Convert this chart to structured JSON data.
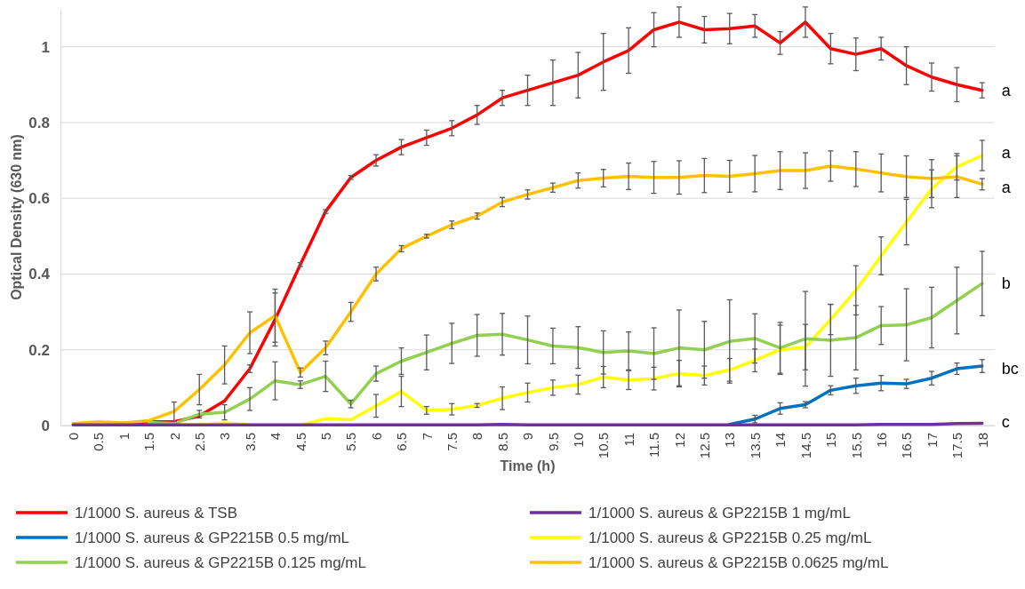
{
  "chart_data": {
    "type": "line",
    "xlabel": "Time (h)",
    "ylabel": "Optical Density (630 nm)",
    "categories": [
      "0",
      "0.5",
      "1",
      "1.5",
      "2",
      "2.5",
      "3",
      "3.5",
      "4",
      "4.5",
      "5",
      "5.5",
      "6",
      "6.5",
      "7",
      "7.5",
      "8",
      "8.5",
      "9",
      "9.5",
      "10",
      "10.5",
      "11",
      "11.5",
      "12",
      "12.5",
      "13",
      "13.5",
      "14",
      "14.5",
      "15",
      "15.5",
      "16",
      "16.5",
      "17",
      "17.5",
      "18"
    ],
    "ylim": [
      0,
      1.1
    ],
    "yticks": [
      0,
      0.2,
      0.4,
      0.6,
      0.8,
      1
    ],
    "grid": "y",
    "legend": "bottom",
    "marker": "none",
    "line_style": "solid",
    "series": [
      {
        "name": "1/1000 S. aureus & TSB",
        "color": "#ff0000",
        "values": [
          null,
          null,
          0.005,
          0.01,
          0.01,
          0.025,
          0.065,
          0.15,
          0.28,
          0.425,
          0.565,
          0.655,
          0.7,
          0.735,
          0.76,
          0.785,
          0.82,
          0.865,
          0.885,
          0.905,
          0.925,
          0.96,
          0.99,
          1.045,
          1.065,
          1.045,
          1.048,
          1.055,
          1.01,
          1.065,
          0.995,
          0.98,
          0.995,
          0.95,
          0.92,
          0.9,
          0.885
        ],
        "errors": [
          null,
          null,
          null,
          null,
          null,
          null,
          null,
          0.01,
          0.07,
          0.005,
          0.005,
          0.005,
          0.015,
          0.02,
          0.02,
          0.02,
          0.025,
          0.02,
          0.04,
          0.06,
          0.06,
          0.075,
          0.06,
          0.045,
          0.04,
          0.035,
          0.04,
          0.03,
          0.03,
          0.04,
          0.04,
          0.043,
          0.03,
          0.05,
          0.037,
          0.045,
          0.02
        ]
      },
      {
        "name": "1/1000 S. aureus & GP2215B 1 mg/mL",
        "color": "#7030a0",
        "values": [
          0.002,
          0.002,
          0.002,
          0.002,
          0.002,
          0.002,
          0.002,
          0.002,
          0.002,
          0.002,
          0.002,
          0.002,
          0.002,
          0.002,
          0.002,
          0.002,
          0.002,
          0.003,
          0.002,
          0.002,
          0.002,
          0.002,
          0.002,
          0.002,
          0.002,
          0.002,
          0.002,
          0.002,
          0.002,
          0.002,
          0.002,
          0.002,
          0.003,
          0.003,
          0.003,
          0.005,
          0.006
        ]
      },
      {
        "name": "1/1000 S. aureus & GP2215B 0.5 mg/mL",
        "color": "#0070c0",
        "values": [
          null,
          null,
          null,
          null,
          null,
          null,
          null,
          null,
          null,
          null,
          null,
          null,
          null,
          null,
          null,
          null,
          null,
          null,
          null,
          null,
          null,
          null,
          null,
          null,
          null,
          null,
          0.003,
          0.017,
          0.045,
          0.055,
          0.093,
          0.105,
          0.112,
          0.11,
          0.125,
          0.15,
          0.157
        ],
        "errors": [
          null,
          null,
          null,
          null,
          null,
          null,
          null,
          null,
          null,
          null,
          null,
          null,
          null,
          null,
          null,
          null,
          null,
          null,
          null,
          null,
          null,
          null,
          null,
          null,
          null,
          null,
          null,
          0.01,
          0.015,
          0.008,
          0.012,
          0.02,
          0.02,
          0.012,
          0.018,
          0.015,
          0.017
        ]
      },
      {
        "name": "1/1000 S. aureus & GP2215B 0.25 mg/mL",
        "color": "#ffff00",
        "values": [
          null,
          null,
          null,
          null,
          0.002,
          0.002,
          0.007,
          0.002,
          null,
          0.001,
          0.018,
          0.015,
          0.052,
          0.09,
          0.04,
          0.043,
          0.053,
          0.072,
          0.087,
          0.1,
          0.108,
          0.128,
          0.12,
          0.124,
          0.137,
          0.132,
          0.147,
          0.172,
          0.2,
          0.207,
          0.28,
          0.357,
          0.448,
          0.537,
          0.625,
          0.683,
          0.713
        ],
        "errors": [
          null,
          null,
          null,
          null,
          null,
          null,
          null,
          null,
          null,
          null,
          null,
          null,
          0.03,
          0.04,
          0.01,
          0.015,
          0.005,
          0.03,
          0.025,
          0.02,
          0.025,
          0.028,
          0.025,
          0.03,
          0.035,
          0.025,
          0.03,
          0.03,
          0.065,
          0.06,
          0.04,
          0.065,
          0.05,
          0.06,
          0.05,
          0.035,
          0.04
        ]
      },
      {
        "name": "1/1000 S. aureus & GP2215B 0.125 mg/mL",
        "color": "#92d050",
        "values": [
          null,
          null,
          null,
          0.008,
          0.005,
          0.03,
          0.035,
          0.07,
          0.118,
          0.108,
          0.13,
          0.057,
          0.137,
          0.17,
          0.193,
          0.217,
          0.238,
          0.241,
          0.226,
          0.21,
          0.206,
          0.193,
          0.197,
          0.19,
          0.205,
          0.2,
          0.222,
          0.23,
          0.205,
          0.229,
          0.225,
          0.232,
          0.264,
          0.266,
          0.285,
          0.33,
          0.375
        ],
        "errors": [
          null,
          null,
          null,
          null,
          null,
          0.01,
          0.02,
          0.03,
          0.05,
          0.01,
          0.04,
          0.01,
          0.02,
          0.035,
          0.046,
          0.053,
          0.055,
          0.055,
          0.063,
          0.047,
          0.055,
          0.057,
          0.05,
          0.068,
          0.1,
          0.075,
          0.11,
          0.065,
          0.067,
          0.125,
          0.095,
          0.085,
          0.05,
          0.095,
          0.08,
          0.088,
          0.085
        ]
      },
      {
        "name": "1/1000 S. aureus & GP2215B 0.0625 mg/mL",
        "color": "#ffc000",
        "values": [
          0.005,
          0.01,
          0.007,
          0.013,
          0.037,
          0.095,
          0.16,
          0.245,
          0.29,
          0.14,
          0.205,
          0.3,
          0.4,
          0.467,
          0.5,
          0.53,
          0.553,
          0.59,
          0.61,
          0.628,
          0.647,
          0.653,
          0.658,
          0.655,
          0.655,
          0.66,
          0.658,
          0.665,
          0.673,
          0.673,
          0.685,
          0.677,
          0.667,
          0.657,
          0.652,
          0.657,
          0.637
        ],
        "errors": [
          null,
          null,
          null,
          null,
          0.025,
          0.04,
          0.05,
          0.055,
          0.07,
          0.012,
          0.018,
          0.025,
          0.018,
          0.008,
          0.005,
          0.01,
          0.008,
          0.012,
          0.012,
          0.012,
          0.02,
          0.023,
          0.035,
          0.042,
          0.044,
          0.045,
          0.042,
          0.048,
          0.05,
          0.047,
          0.04,
          0.046,
          0.05,
          0.055,
          0.05,
          0.055,
          0.015
        ]
      }
    ],
    "annotations": [
      {
        "text": "a",
        "x": "18",
        "y": 0.885
      },
      {
        "text": "a",
        "x": "18",
        "y": 0.72
      },
      {
        "text": "a",
        "x": "18",
        "y": 0.63
      },
      {
        "text": "b",
        "x": "18",
        "y": 0.375
      },
      {
        "text": "bc",
        "x": "18",
        "y": 0.15
      },
      {
        "text": "c",
        "x": "18",
        "y": 0.01
      }
    ]
  }
}
